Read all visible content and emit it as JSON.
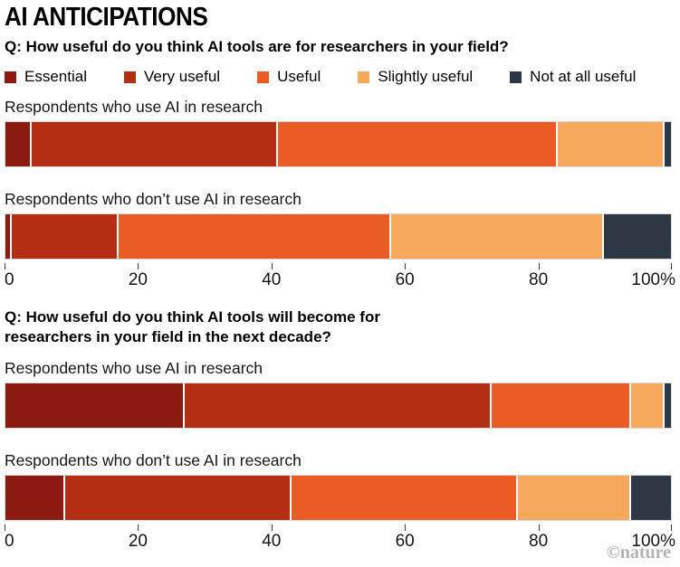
{
  "title": "AI ANTICIPATIONS",
  "credit": "©nature",
  "colors": {
    "essential": "#8b1a10",
    "very_useful": "#b32e13",
    "useful": "#ea5b26",
    "slightly_useful": "#f6a95c",
    "not_at_all_useful": "#2e3744"
  },
  "category_keys": [
    "essential",
    "very_useful",
    "useful",
    "slightly_useful",
    "not_at_all_useful"
  ],
  "legend": [
    {
      "key": "essential",
      "label": "Essential"
    },
    {
      "key": "very_useful",
      "label": "Very useful"
    },
    {
      "key": "useful",
      "label": "Useful"
    },
    {
      "key": "slightly_useful",
      "label": "Slightly useful"
    },
    {
      "key": "not_at_all_useful",
      "label": "Not at all useful"
    }
  ],
  "axis": {
    "tick_values": [
      0,
      20,
      40,
      60,
      80,
      100
    ],
    "tick_labels": [
      "0",
      "20",
      "40",
      "60",
      "80",
      "100%"
    ]
  },
  "chart_data": [
    {
      "type": "bar",
      "subtype": "stacked-horizontal-percent",
      "question": "Q: How useful do you think AI tools are for researchers in your field?",
      "categories": [
        "Essential",
        "Very useful",
        "Useful",
        "Slightly useful",
        "Not at all useful"
      ],
      "xlabel": "",
      "ylabel": "",
      "xlim": [
        0,
        100
      ],
      "grid": false,
      "bars": [
        {
          "label": "Respondents who use AI in research",
          "values": [
            4,
            37,
            42,
            16,
            1
          ]
        },
        {
          "label": "Respondents who don’t use AI in research",
          "values": [
            1,
            16,
            41,
            32,
            10
          ]
        }
      ]
    },
    {
      "type": "bar",
      "subtype": "stacked-horizontal-percent",
      "question": "Q: How useful do you think AI tools will become for researchers in your field in the next decade?",
      "categories": [
        "Essential",
        "Very useful",
        "Useful",
        "Slightly useful",
        "Not at all useful"
      ],
      "xlabel": "",
      "ylabel": "",
      "xlim": [
        0,
        100
      ],
      "grid": false,
      "bars": [
        {
          "label": "Respondents who use AI in research",
          "values": [
            27,
            46,
            21,
            5,
            1
          ]
        },
        {
          "label": "Respondents who don’t use AI in research",
          "values": [
            9,
            34,
            34,
            17,
            6
          ]
        }
      ]
    }
  ]
}
